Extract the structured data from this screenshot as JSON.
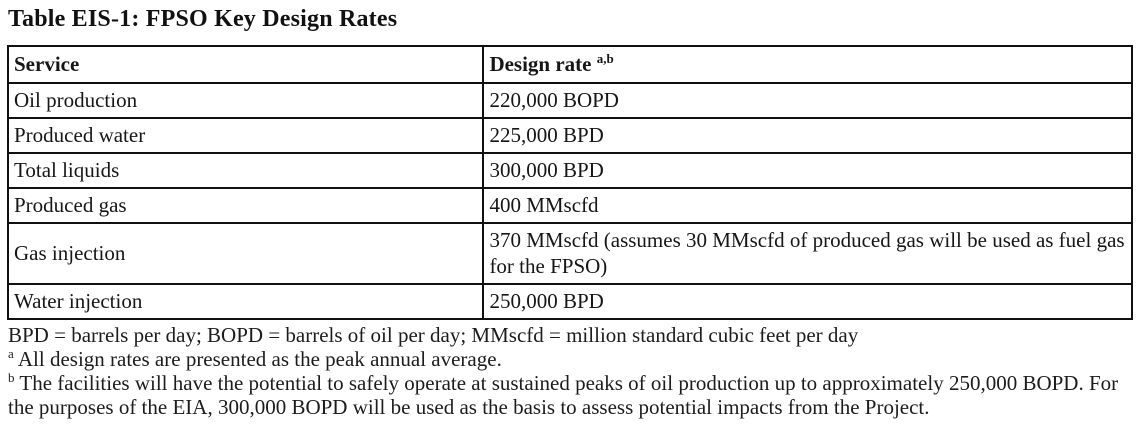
{
  "title": "Table EIS-1: FPSO Key Design Rates",
  "table": {
    "headers": {
      "service": "Service",
      "design_rate": "Design rate",
      "design_rate_superscript": "a,b"
    },
    "rows": [
      {
        "service": "Oil production",
        "rate": "220,000 BOPD"
      },
      {
        "service": "Produced water",
        "rate": "225,000 BPD"
      },
      {
        "service": "Total liquids",
        "rate": "300,000 BPD"
      },
      {
        "service": "Produced gas",
        "rate": "400 MMscfd"
      },
      {
        "service": "Gas injection",
        "rate": "370 MMscfd (assumes 30 MMscfd of produced gas will be used as fuel gas for the FPSO)"
      },
      {
        "service": "Water injection",
        "rate": "250,000 BPD"
      }
    ]
  },
  "footnotes": {
    "abbreviations": "BPD = barrels per day; BOPD = barrels of oil per day; MMscfd = million standard cubic feet per day",
    "note_a_marker": "a",
    "note_a_text": "All design rates are presented as the peak annual average.",
    "note_b_marker": "b",
    "note_b_text": "The facilities will have the potential to safely operate at sustained peaks of oil production up to approximately 250,000 BOPD. For the purposes of the EIA, 300,000 BOPD will be used as the basis to assess potential impacts from the Project."
  }
}
